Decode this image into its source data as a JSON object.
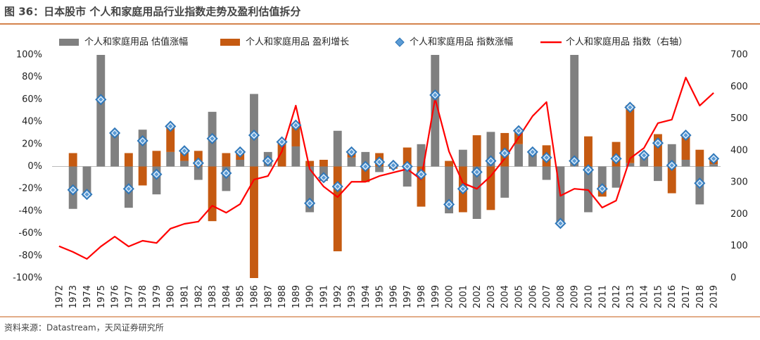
{
  "chart_data": {
    "type": "bar",
    "title": "图 36：日本股市 个人和家庭用品行业指数走势及盈利估值拆分",
    "source": "资料来源：Datastream，天风证券研究所",
    "categories": [
      "1972",
      "1973",
      "1974",
      "1975",
      "1976",
      "1977",
      "1978",
      "1979",
      "1980",
      "1981",
      "1982",
      "1983",
      "1984",
      "1985",
      "1986",
      "1987",
      "1988",
      "1989",
      "1990",
      "1991",
      "1992",
      "1993",
      "1994",
      "1995",
      "1996",
      "1997",
      "1998",
      "1999",
      "2000",
      "2001",
      "2002",
      "2003",
      "2004",
      "2005",
      "2006",
      "2007",
      "2008",
      "2009",
      "2010",
      "2011",
      "2012",
      "2013",
      "2014",
      "2015",
      "2016",
      "2017",
      "2018",
      "2019"
    ],
    "ylim": [
      -100,
      100
    ],
    "yticks": [
      {
        "value": -100,
        "label": "-100%"
      },
      {
        "value": -80,
        "label": "-80%"
      },
      {
        "value": -60,
        "label": "-60%"
      },
      {
        "value": -40,
        "label": "-40%"
      },
      {
        "value": -20,
        "label": "-20%"
      },
      {
        "value": 0,
        "label": "0%"
      },
      {
        "value": 20,
        "label": "20%"
      },
      {
        "value": 40,
        "label": "40%"
      },
      {
        "value": 60,
        "label": "60%"
      },
      {
        "value": 80,
        "label": "80%"
      },
      {
        "value": 100,
        "label": "100%"
      }
    ],
    "y2lim": [
      0,
      700
    ],
    "y2ticks": [
      0,
      100,
      200,
      300,
      400,
      500,
      600,
      700
    ],
    "series": [
      {
        "name": "个人和家庭用品 估值涨幅",
        "type": "bar",
        "color": "#808080",
        "values": [
          null,
          -38,
          -27,
          100,
          30,
          -37,
          33,
          -25,
          13,
          5,
          -12,
          49,
          -22,
          6,
          65,
          13,
          0,
          18,
          -41,
          -13,
          32,
          8,
          13,
          -5,
          0,
          -18,
          20,
          100,
          -42,
          15,
          -47,
          31,
          -28,
          20,
          12,
          -12,
          -50,
          100,
          -41,
          -17,
          -19,
          3,
          8,
          -13,
          20,
          6,
          -34,
          2
        ]
      },
      {
        "name": "个人和家庭用品 盈利增长",
        "type": "bar",
        "color": "#c55a11",
        "values": [
          null,
          12,
          0,
          0,
          0,
          12,
          -17,
          14,
          23,
          8,
          14,
          -49,
          12,
          8,
          -100,
          0,
          22,
          20,
          5,
          6,
          -76,
          5,
          -14,
          12,
          -2,
          17,
          -36,
          0,
          5,
          -41,
          28,
          -39,
          30,
          12,
          0,
          19,
          0,
          0,
          27,
          -10,
          22,
          52,
          2,
          29,
          -24,
          22,
          15,
          5
        ]
      },
      {
        "name": "个人和家庭用品 指数涨幅",
        "type": "scatter",
        "color": "#5b9bd5",
        "values": [
          null,
          -21,
          -25,
          60,
          30,
          -20,
          23,
          -7,
          36,
          14,
          3,
          25,
          -6,
          13,
          28,
          5,
          22,
          37,
          -33,
          -10,
          -18,
          13,
          0,
          4,
          1,
          0,
          -7,
          64,
          -34,
          -20,
          -5,
          5,
          12,
          32,
          13,
          8,
          -51,
          5,
          -3,
          -20,
          7,
          53,
          10,
          21,
          1,
          28,
          -15,
          7
        ]
      },
      {
        "name": "个人和家庭用品 指数（右轴）",
        "type": "line",
        "axis": "y2",
        "color": "#ff0000",
        "values": [
          100,
          82,
          60,
          99,
          130,
          99,
          117,
          110,
          155,
          170,
          177,
          227,
          205,
          232,
          309,
          320,
          397,
          541,
          342,
          287,
          254,
          302,
          302,
          320,
          331,
          342,
          309,
          563,
          397,
          298,
          280,
          320,
          375,
          441,
          508,
          552,
          258,
          280,
          276,
          221,
          243,
          375,
          408,
          486,
          497,
          629,
          541,
          581
        ]
      }
    ]
  }
}
